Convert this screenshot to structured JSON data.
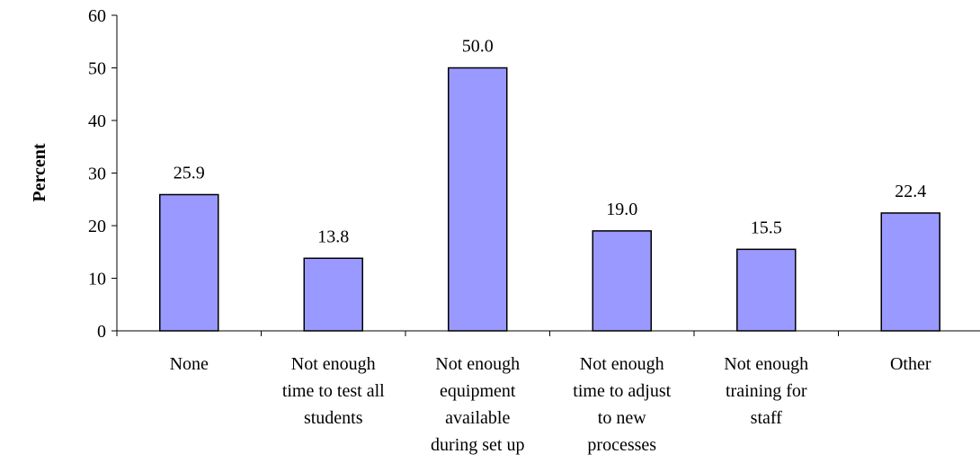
{
  "chart_data": {
    "type": "bar",
    "categories": [
      [
        "None"
      ],
      [
        "Not enough",
        "time to test all",
        "students"
      ],
      [
        "Not enough",
        "equipment",
        "available",
        "during set up"
      ],
      [
        "Not enough",
        "time to adjust",
        "to new",
        "processes"
      ],
      [
        "Not enough",
        "training for",
        "staff"
      ],
      [
        "Other"
      ]
    ],
    "values": [
      25.9,
      13.8,
      50.0,
      19.0,
      15.5,
      22.4
    ],
    "data_labels": [
      "25.9",
      "13.8",
      "50.0",
      "19.0",
      "15.5",
      "22.4"
    ],
    "ylabel": "Percent",
    "xlabel": "",
    "ylim": [
      0,
      60
    ],
    "yticks": [
      0,
      10,
      20,
      30,
      40,
      50,
      60
    ],
    "bar_color": "#9999ff",
    "grid": false
  }
}
